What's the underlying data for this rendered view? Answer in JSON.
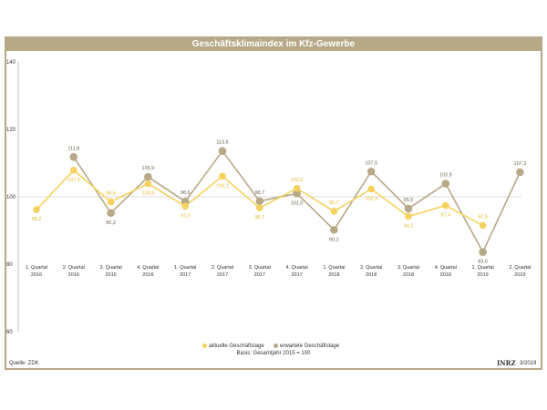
{
  "chart_data": {
    "type": "line",
    "title": "Geschäftsklimaindex im Kfz-Gewerbe",
    "categories": [
      [
        "1. Quartal",
        "2016"
      ],
      [
        "2. Quartal",
        "2016"
      ],
      [
        "3. Quartal",
        "2016"
      ],
      [
        "4. Quartal",
        "2016"
      ],
      [
        "1. Quartal",
        "2017"
      ],
      [
        "2. Quartal",
        "2017"
      ],
      [
        "3. Quartal",
        "2017"
      ],
      [
        "4. Quartal",
        "2017"
      ],
      [
        "1. Quartal",
        "2018"
      ],
      [
        "2. Quartal",
        "2018"
      ],
      [
        "3. Quartal",
        "2018"
      ],
      [
        "4. Quartal",
        "2018"
      ],
      [
        "1. Quartal",
        "2019"
      ],
      [
        "2. Quartal",
        "2019"
      ]
    ],
    "ylim": [
      60,
      140
    ],
    "yticks": [
      "140",
      "120",
      "100",
      "80",
      "60"
    ],
    "series": [
      {
        "name": "aktuelle Geschäftslage",
        "color": "#f5d25f",
        "values": [
          96.2,
          107.9,
          98.5,
          103.9,
          97.2,
          106.1,
          96.7,
          102.5,
          95.7,
          102.3,
          94.2,
          97.4,
          91.5,
          null
        ],
        "labels": [
          "96,2",
          "107,9",
          "98,5",
          "103,9",
          "97,2",
          "106,1",
          "96,7",
          "102,5",
          "95,7",
          "102,3",
          "94,2",
          "97,4",
          "91,5",
          ""
        ]
      },
      {
        "name": "erwartete Geschäftslage",
        "color": "#b7a987",
        "values": [
          null,
          111.8,
          95.2,
          105.9,
          98.6,
          113.6,
          98.7,
          101.0,
          90.2,
          107.5,
          96.5,
          103.9,
          83.6,
          107.3
        ],
        "labels": [
          "",
          "111,8",
          "95,2",
          "105,9",
          "98,6",
          "113,6",
          "98,7",
          "101,0",
          "90,2",
          "107,5",
          "96,5",
          "103,9",
          "83,6",
          "107,3"
        ]
      }
    ],
    "legend": "bottom-center",
    "grid": false,
    "reference_line": 100
  },
  "footer": {
    "basis": "Basis: Gesamtjahr 2015 = 100",
    "source": "Quelle: ZDK",
    "brand": "INRZ",
    "date": "3/2019"
  }
}
